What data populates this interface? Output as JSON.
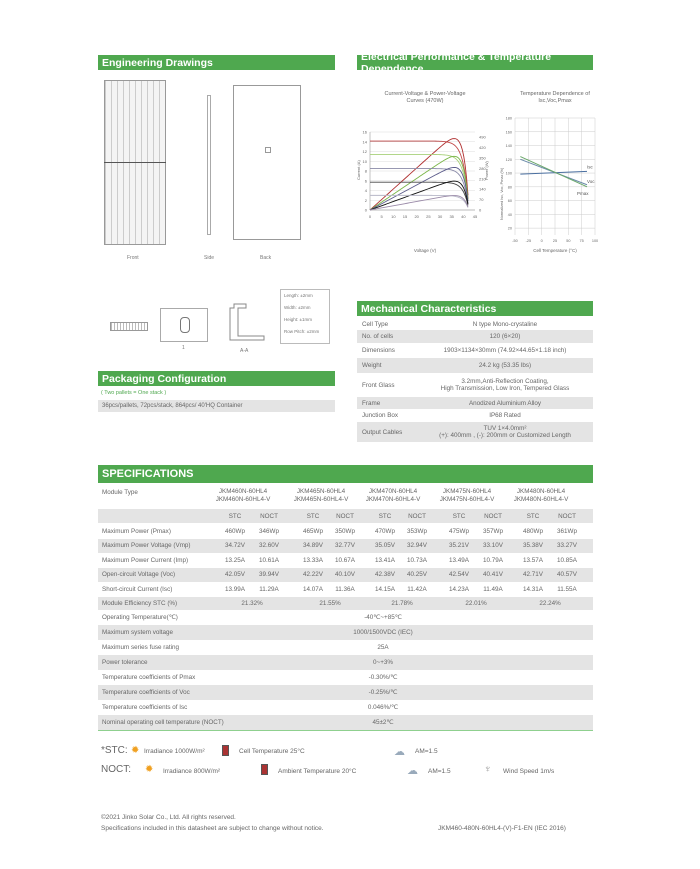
{
  "engineering": {
    "title": "Engineering Drawings",
    "views": [
      "Front",
      "Side",
      "Back"
    ],
    "section_label": "A-A",
    "tolerances": [
      "Length: ±2mm",
      "Width: ±2mm",
      "Height: ±1mm",
      "Row Pitch: ±2mm"
    ]
  },
  "electrical": {
    "title": "Electrical Performance & Temperature Dependence",
    "iv_chart": {
      "title_line1": "Current-Voltage & Power-Voltage",
      "title_line2": "Curves (470W)",
      "xlabel": "Voltage (V)",
      "ylabel_left": "Current (A)",
      "ylabel_right": "Power (W)",
      "x_ticks": [
        "0",
        "5",
        "10",
        "15",
        "20",
        "25",
        "30",
        "35",
        "40",
        "45"
      ],
      "y_left_ticks": [
        "0",
        "2",
        "4",
        "6",
        "8",
        "10",
        "12",
        "14",
        "16"
      ],
      "y_right_ticks": [
        "0",
        "70",
        "140",
        "210",
        "280",
        "350",
        "420",
        "490"
      ],
      "colors": [
        "#b03030",
        "#c24a4a",
        "#7ab648",
        "#a8d07a",
        "#5a5a8a",
        "#8a8aa8",
        "#111111",
        "#444444",
        "#9a8aa8",
        "#b8b8c8"
      ]
    },
    "temp_chart": {
      "title_line1": "Temperature Dependence of",
      "title_line2": "Isc,Voc,Pmax",
      "xlabel": "Cell Temperature (°C)",
      "ylabel": "Normalized Isc, Voc, Pmax (%)",
      "x_ticks": [
        "-50",
        "-25",
        "0",
        "25",
        "50",
        "75",
        "100"
      ],
      "y_ticks": [
        "20",
        "40",
        "60",
        "80",
        "100",
        "120",
        "140",
        "160",
        "180"
      ],
      "series": [
        {
          "name": "Isc",
          "color": "#4a6fa0"
        },
        {
          "name": "Voc",
          "color": "#6a8aa8"
        },
        {
          "name": "Pmax",
          "color": "#6aa86a"
        }
      ]
    }
  },
  "packaging": {
    "title": "Packaging Configuration",
    "note": "( Two pallets = One stack )",
    "detail": "36pcs/pallets, 72pcs/stack, 864pcs/ 40'HQ Container"
  },
  "mechanical": {
    "title": "Mechanical Characteristics",
    "rows": [
      {
        "label": "Cell  Type",
        "value": "N type Mono-crystaline"
      },
      {
        "label": "No. of cells",
        "value": "120 (6×20)"
      },
      {
        "label": "Dimensions",
        "value": "1903×1134×30mm (74.92×44.65×1.18 inch)"
      },
      {
        "label": "Weight",
        "value": "24.2 kg (53.35 lbs)"
      },
      {
        "label": "Front Glass",
        "value": "3.2mm,Anti-Reflection Coating,",
        "value2": "High Transmission, Low Iron, Tempered Glass"
      },
      {
        "label": "Frame",
        "value": "Anodized Aluminium Alloy"
      },
      {
        "label": "Junction Box",
        "value": "IP68 Rated"
      },
      {
        "label": "Output Cables",
        "value": "TUV  1×4.0mm²",
        "value2": "(+): 400mm , (-): 200mm or Customized Length"
      }
    ]
  },
  "specs": {
    "title": "SPECIFICATIONS",
    "module_type_label": "Module Type",
    "models": [
      [
        "JKM460N-60HL4",
        "JKM460N-60HL4-V"
      ],
      [
        "JKM465N-60HL4",
        "JKM465N-60HL4-V"
      ],
      [
        "JKM470N-60HL4",
        "JKM470N-60HL4-V"
      ],
      [
        "JKM475N-60HL4",
        "JKM475N-60HL4-V"
      ],
      [
        "JKM480N-60HL4",
        "JKM480N-60HL4-V"
      ]
    ],
    "stc": "STC",
    "noct": "NOCT",
    "rows": [
      {
        "label": "Maximum Power (Pmax)",
        "values": [
          "460Wp",
          "346Wp",
          "465Wp",
          "350Wp",
          "470Wp",
          "353Wp",
          "475Wp",
          "357Wp",
          "480Wp",
          "361Wp"
        ]
      },
      {
        "label": "Maximum Power Voltage (Vmp)",
        "values": [
          "34.72V",
          "32.60V",
          "34.89V",
          "32.77V",
          "35.05V",
          "32.94V",
          "35.21V",
          "33.10V",
          "35.38V",
          "33.27V"
        ]
      },
      {
        "label": "Maximum Power Current (Imp)",
        "values": [
          "13.25A",
          "10.61A",
          "13.33A",
          "10.67A",
          "13.41A",
          "10.73A",
          "13.49A",
          "10.79A",
          "13.57A",
          "10.85A"
        ]
      },
      {
        "label": "Open-circuit Voltage (Voc)",
        "values": [
          "42.05V",
          "39.94V",
          "42.22V",
          "40.10V",
          "42.38V",
          "40.25V",
          "42.54V",
          "40.41V",
          "42.71V",
          "40.57V"
        ]
      },
      {
        "label": "Short-circuit Current (Isc)",
        "values": [
          "13.99A",
          "11.29A",
          "14.07A",
          "11.36A",
          "14.15A",
          "11.42A",
          "14.23A",
          "11.49A",
          "14.31A",
          "11.55A"
        ]
      }
    ],
    "efficiency": {
      "label": "Module Efficiency STC (%)",
      "values": [
        "21.32%",
        "21.55%",
        "21.78%",
        "22.01%",
        "22.24%"
      ]
    },
    "common": [
      {
        "label": "Operating Temperature(℃)",
        "value": "-40℃~+85℃"
      },
      {
        "label": "Maximum system voltage",
        "value": "1000/1500VDC (IEC)"
      },
      {
        "label": "Maximum series fuse rating",
        "value": "25A"
      },
      {
        "label": "Power tolerance",
        "value": "0~+3%"
      },
      {
        "label": "Temperature coefficients of Pmax",
        "value": "-0.30%/℃"
      },
      {
        "label": "Temperature coefficients of Voc",
        "value": "-0.25%/℃"
      },
      {
        "label": "Temperature coefficients of Isc",
        "value": "0.046%/℃"
      },
      {
        "label": "Nominal operating cell temperature  (NOCT)",
        "value": "45±2℃"
      }
    ]
  },
  "conditions": {
    "stc_label": "*STC:",
    "noct_label": "NOCT:",
    "stc_irr": "Irradiance 1000W/m²",
    "stc_temp": "Cell Temperature 25°C",
    "stc_am": "AM=1.5",
    "noct_irr": "Irradiance 800W/m²",
    "noct_temp": "Ambient Temperature 20°C",
    "noct_am": "AM=1.5",
    "noct_wind": "Wind Speed 1m/s"
  },
  "footer": {
    "copyright": "©2021 Jinko Solar Co., Ltd. All rights reserved.",
    "disclaimer": "Specifications included in this datasheet are subject to change without notice.",
    "doc_code": "JKM460-480N-60HL4-(V)-F1-EN (IEC 2016)"
  },
  "colors": {
    "brand_green": "#4fa84f",
    "row_grey": "#e4e4e4"
  }
}
